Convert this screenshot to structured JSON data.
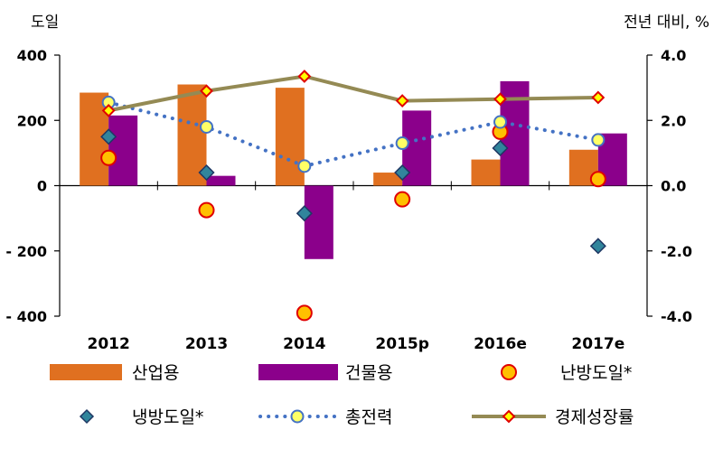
{
  "chart_data": {
    "type": "bar",
    "categories": [
      "2012",
      "2013",
      "2014",
      "2015p",
      "2016e",
      "2017e"
    ],
    "left_axis": {
      "unit_label": "도일",
      "range": [
        -400,
        400
      ],
      "ticks": [
        "400",
        "200",
        "0",
        "- 200",
        "- 400"
      ]
    },
    "right_axis": {
      "unit_label": "전년 대비, %",
      "range": [
        -4.0,
        4.0
      ],
      "ticks": [
        "4.0",
        "2.0",
        "0.0",
        "-2.0",
        "-4.0"
      ]
    },
    "series": [
      {
        "name": "산업용",
        "kind": "bar",
        "axis": "right",
        "color": "#E07020",
        "values": [
          2.85,
          3.1,
          3.0,
          0.4,
          0.8,
          1.1
        ]
      },
      {
        "name": "건물용",
        "kind": "bar",
        "axis": "right",
        "color": "#8B008B",
        "values": [
          2.15,
          0.3,
          -2.25,
          2.3,
          3.2,
          1.6
        ]
      },
      {
        "name": "난방도일*",
        "kind": "marker",
        "axis": "left",
        "marker": "circle",
        "color": "#FFC000",
        "stroke": "#E00000",
        "values": [
          85,
          -75,
          -390,
          -42,
          165,
          20
        ]
      },
      {
        "name": "냉방도일*",
        "kind": "marker",
        "axis": "left",
        "marker": "diamond",
        "color": "#31859C",
        "stroke": "#1F3864",
        "values": [
          150,
          40,
          -85,
          40,
          115,
          -185
        ]
      },
      {
        "name": "총전력",
        "kind": "dotted-line",
        "axis": "right",
        "marker": "circle",
        "color": "#4472C4",
        "marker_fill": "#FFFF66",
        "values": [
          2.55,
          1.8,
          0.6,
          1.3,
          1.95,
          1.4
        ]
      },
      {
        "name": "경제성장률",
        "kind": "line",
        "axis": "right",
        "marker": "diamond",
        "color": "#948A54",
        "marker_fill": "#FFFF00",
        "marker_stroke": "#E00000",
        "values": [
          2.3,
          2.9,
          3.35,
          2.6,
          2.65,
          2.7
        ]
      }
    ],
    "grid": false,
    "legend_position": "bottom"
  }
}
